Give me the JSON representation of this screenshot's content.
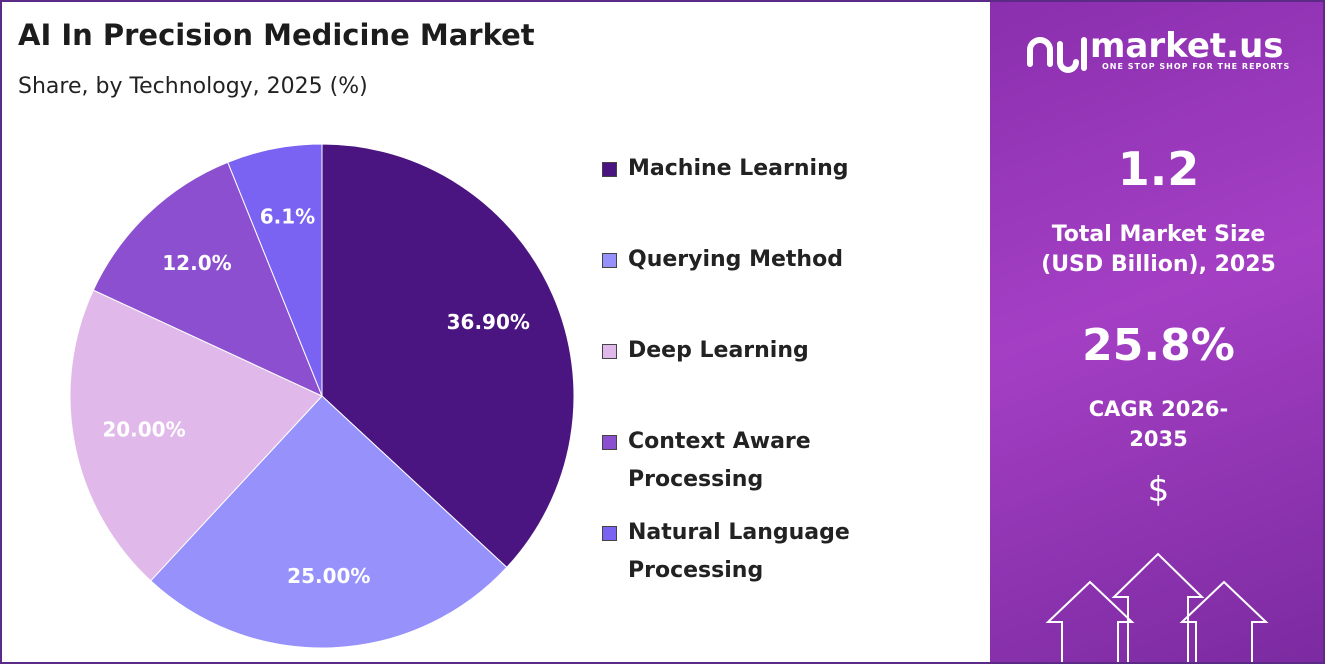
{
  "chart_data": {
    "type": "pie",
    "title": "AI In Precision Medicine Market",
    "subtitle": "Share, by Technology, 2025 (%)",
    "categories": [
      "Machine Learning",
      "Querying Method",
      "Deep Learning",
      "Context Aware Processing",
      "Natural Language Processing"
    ],
    "values": [
      36.9,
      25,
      20,
      12,
      6.1
    ],
    "value_labels": [
      "36.90%",
      "25.00%",
      "20.00%",
      "12.0%",
      "6.1%"
    ],
    "colors": [
      "#4a1580",
      "#9791fb",
      "#e0b8ea",
      "#8b4fcf",
      "#7a62f2"
    ]
  },
  "sidebar": {
    "brand": "market.us",
    "tagline": "ONE STOP SHOP FOR THE REPORTS",
    "market_size": "1.2",
    "market_size_label": "Total Market Size (USD Billion), 2025",
    "cagr": "25.8%",
    "cagr_label": "CAGR 2026-2035",
    "currency": "$"
  }
}
